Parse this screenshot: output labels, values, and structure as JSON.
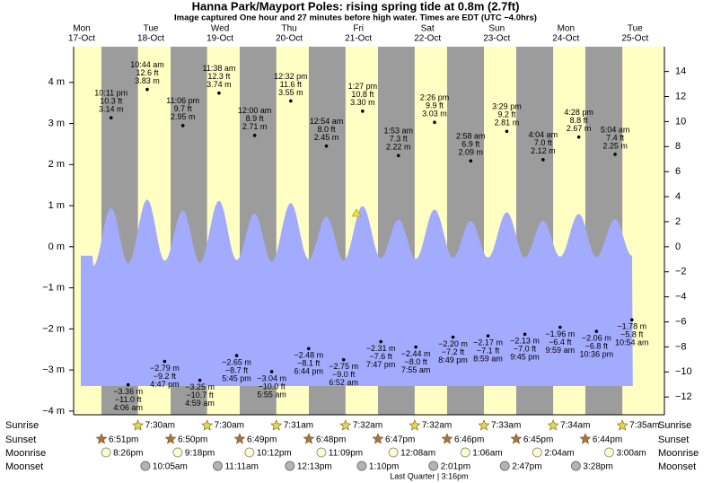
{
  "header": {
    "title": "Hanna Park/Mayport Poles: rising  spring tide at 0.8m (2.7ft)",
    "subtitle": "Image captured One hour and 27 minutes before high water. Times are EDT (UTC −4.0hrs)"
  },
  "chart_data": {
    "type": "tide",
    "day_color": "#ffffc4",
    "night_color": "#9c9c9c",
    "water_color": "#a3abff",
    "date_color": "#e00000",
    "ylim": [
      -4.09,
      4.87
    ],
    "yticks": [
      {
        "value": 4,
        "label": "4 m"
      },
      {
        "value": 3,
        "label": "3 m"
      },
      {
        "value": 2,
        "label": "2 m"
      },
      {
        "value": 1,
        "label": "1 m"
      },
      {
        "value": 0,
        "label": "0 m"
      },
      {
        "value": -1,
        "label": "−1 m"
      },
      {
        "value": -2,
        "label": "−2 m"
      },
      {
        "value": -3,
        "label": "−3 m"
      },
      {
        "value": -4,
        "label": "−4 m"
      }
    ],
    "y2lim": [
      -13.42,
      15.98
    ],
    "y2ticks": [
      14,
      12,
      10,
      8,
      6,
      4,
      2,
      0,
      {
        "value": -2,
        "label": "−2"
      },
      {
        "value": -4,
        "label": "−4"
      },
      {
        "value": -6,
        "label": "−6"
      },
      {
        "value": -8,
        "label": "−8"
      },
      {
        "value": -10,
        "label": "−10"
      },
      {
        "value": -12,
        "label": "−12"
      }
    ],
    "days": [
      {
        "weekday": "Mon",
        "date": "17-Oct",
        "sunset": "6:51pm",
        "moonrise": "8:26pm",
        "tides": [
          {
            "time": "10:11 pm",
            "ft_label": "10.3 ft",
            "m": 3.14,
            "m_label": "3.14 m"
          }
        ]
      },
      {
        "weekday": "Tue",
        "date": "18-Oct",
        "sunrise": "7:30am",
        "sunset": "6:50pm",
        "moonrise": "9:18pm",
        "moonset": "10:05am",
        "tides": [
          {
            "time": "4:06 am",
            "ft_label": "−11.0 ft",
            "m": -3.36,
            "m_label": "−3.36 m"
          },
          {
            "time": "10:44 am",
            "ft_label": "12.6 ft",
            "m": 3.83,
            "m_label": "3.83 m"
          },
          {
            "time": "4:47 pm",
            "ft_label": "−9.2 ft",
            "m": -2.79,
            "m_label": "−2.79 m"
          },
          {
            "time": "11:06 pm",
            "ft_label": "9.7 ft",
            "m": 2.95,
            "m_label": "2.95 m"
          }
        ]
      },
      {
        "weekday": "Wed",
        "date": "19-Oct",
        "sunrise": "7:30am",
        "sunset": "6:49pm",
        "moonrise": "10:12pm",
        "moonset": "11:11am",
        "tides": [
          {
            "time": "4:59 am",
            "ft_label": "−10.7 ft",
            "m": -3.25,
            "m_label": "−3.25 m"
          },
          {
            "time": "11:38 am",
            "ft_label": "12.3 ft",
            "m": 3.74,
            "m_label": "3.74 m"
          },
          {
            "time": "5:45 pm",
            "ft_label": "−8.7 ft",
            "m": -2.65,
            "m_label": "−2.65 m"
          }
        ]
      },
      {
        "weekday": "Thu",
        "date": "20-Oct",
        "sunrise": "7:31am",
        "sunset": "6:48pm",
        "moonrise": "11:09pm",
        "moonset": "12:13pm",
        "tides": [
          {
            "time": "12:00 am",
            "ft_label": "8.9 ft",
            "m": 2.71,
            "m_label": "2.71 m"
          },
          {
            "time": "5:55 am",
            "ft_label": "−10.0 ft",
            "m": -3.04,
            "m_label": "−3.04 m"
          },
          {
            "time": "12:32 pm",
            "ft_label": "11.6 ft",
            "m": 3.55,
            "m_label": "3.55 m"
          },
          {
            "time": "6:44 pm",
            "ft_label": "−8.1 ft",
            "m": -2.48,
            "m_label": "−2.48 m"
          }
        ]
      },
      {
        "weekday": "Fri",
        "date": "21-Oct",
        "sunrise": "7:32am",
        "sunset": "6:47pm",
        "moonset": "1:10pm",
        "tides": [
          {
            "time": "12:54 am",
            "ft_label": "8.0 ft",
            "m": 2.45,
            "m_label": "2.45 m"
          },
          {
            "time": "6:52 am",
            "ft_label": "−9.0 ft",
            "m": -2.75,
            "m_label": "−2.75 m"
          },
          {
            "time": "1:27 pm",
            "ft_label": "10.8 ft",
            "m": 3.3,
            "m_label": "3.30 m"
          },
          {
            "time": "7:47 pm",
            "ft_label": "−7.6 ft",
            "m": -2.31,
            "m_label": "−2.31 m"
          }
        ]
      },
      {
        "weekday": "Sat",
        "date": "22-Oct",
        "sunrise": "7:32am",
        "sunset": "6:46pm",
        "moonrise": "12:08am",
        "moonset": "2:01pm",
        "tides": [
          {
            "time": "1:53 am",
            "ft_label": "7.3 ft",
            "m": 2.22,
            "m_label": "2.22 m"
          },
          {
            "time": "7:55 am",
            "ft_label": "−8.0 ft",
            "m": -2.44,
            "m_label": "−2.44 m"
          },
          {
            "time": "2:26 pm",
            "ft_label": "9.9 ft",
            "m": 3.03,
            "m_label": "3.03 m"
          },
          {
            "time": "8:49 pm",
            "ft_label": "−7.2 ft",
            "m": -2.2,
            "m_label": "−2.20 m"
          }
        ]
      },
      {
        "weekday": "Sun",
        "date": "23-Oct",
        "sunrise": "7:33am",
        "sunset": "6:45pm",
        "moonrise": "1:06am",
        "moonset": "2:47pm",
        "tides": [
          {
            "time": "2:58 am",
            "ft_label": "6.9 ft",
            "m": 2.09,
            "m_label": "2.09 m"
          },
          {
            "time": "8:59 am",
            "ft_label": "−7.1 ft",
            "m": -2.17,
            "m_label": "−2.17 m"
          },
          {
            "time": "3:29 pm",
            "ft_label": "9.2 ft",
            "m": 2.81,
            "m_label": "2.81 m"
          },
          {
            "time": "9:45 pm",
            "ft_label": "−7.0 ft",
            "m": -2.13,
            "m_label": "−2.13 m"
          }
        ]
      },
      {
        "weekday": "Mon",
        "date": "24-Oct",
        "sunrise": "7:34am",
        "sunset": "6:44pm",
        "moonrise": "2:04am",
        "moonset": "3:28pm",
        "tides": [
          {
            "time": "4:04 am",
            "ft_label": "7.0 ft",
            "m": 2.12,
            "m_label": "2.12 m"
          },
          {
            "time": "9:59 am",
            "ft_label": "−6.4 ft",
            "m": -1.96,
            "m_label": "−1.96 m"
          },
          {
            "time": "4:28 pm",
            "ft_label": "8.8 ft",
            "m": 2.67,
            "m_label": "2.67 m"
          },
          {
            "time": "10:36 pm",
            "ft_label": "−6.8 ft",
            "m": -2.06,
            "m_label": "−2.06 m"
          }
        ]
      },
      {
        "weekday": "Tue",
        "date": "25-Oct",
        "sunrise": "7:35am",
        "moonrise": "3:00am",
        "tides": [
          {
            "time": "5:04 am",
            "ft_label": "7.4 ft",
            "m": 2.25,
            "m_label": "2.25 m"
          },
          {
            "time": "10:54 am",
            "ft_label": "−5.8 ft",
            "m": -1.78,
            "m_label": "−1.78 m"
          }
        ]
      }
    ]
  },
  "rows": {
    "sunrise": "Sunrise",
    "sunset": "Sunset",
    "moonrise": "Moonrise",
    "moonset": "Moonset"
  },
  "moon_phase": "Last Quarter | 3:16pm"
}
